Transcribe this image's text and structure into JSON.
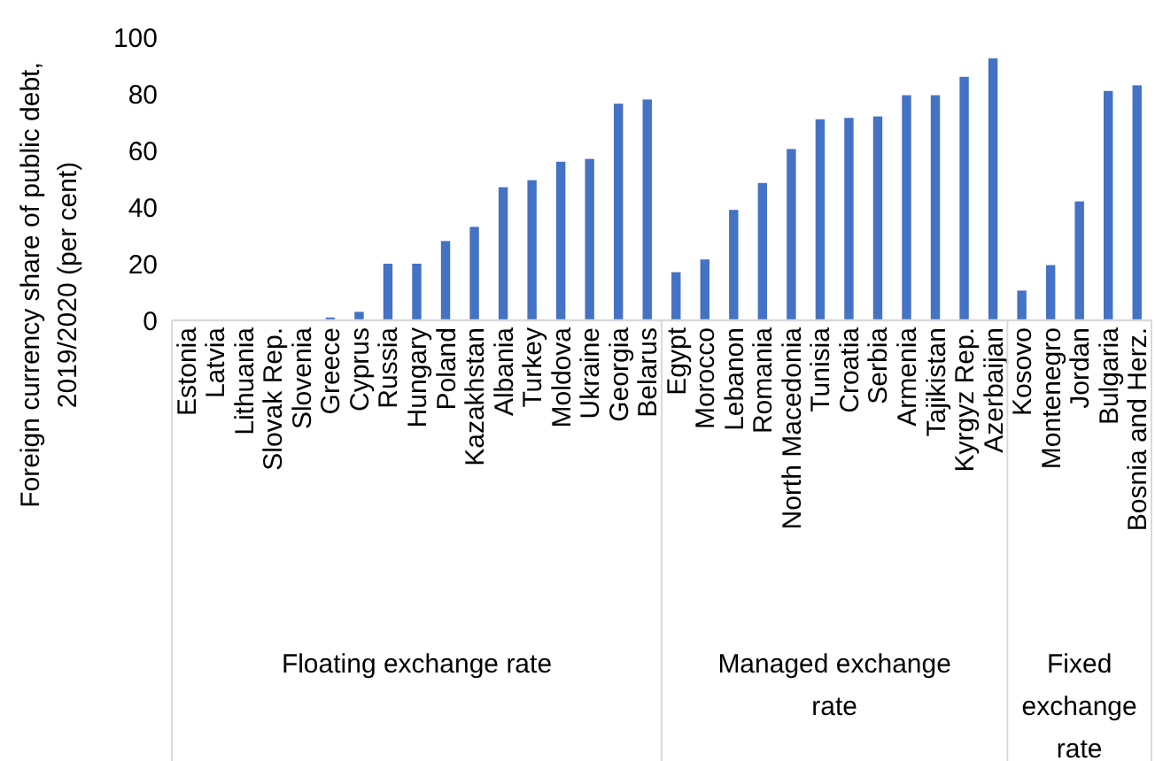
{
  "chart_data": {
    "type": "bar",
    "ylabel": "Foreign currency share of public debt, 2019/2020 (per cent)",
    "categories": [
      "Estonia",
      "Latvia",
      "Lithuania",
      "Slovak Rep.",
      "Slovenia",
      "Greece",
      "Cyprus",
      "Russia",
      "Hungary",
      "Poland",
      "Kazakhstan",
      "Albania",
      "Turkey",
      "Moldova",
      "Ukraine",
      "Georgia",
      "Belarus",
      "Egypt",
      "Morocco",
      "Lebanon",
      "Romania",
      "North Macedonia",
      "Tunisia",
      "Croatia",
      "Serbia",
      "Armenia",
      "Tajikistan",
      "Kyrgyz Rep.",
      "Azerbaijan",
      "Kosovo",
      "Montenegro",
      "Jordan",
      "Bulgaria",
      "Bosnia and Herz."
    ],
    "values": [
      0,
      0,
      0,
      0,
      0,
      1,
      3,
      20,
      20,
      28,
      33,
      47,
      49.5,
      56,
      57,
      76.5,
      78,
      17,
      21.5,
      39,
      48.5,
      60.5,
      71,
      71.5,
      72,
      79.5,
      79.5,
      86,
      92.5,
      10.5,
      19.5,
      42,
      81,
      83
    ],
    "color": "#4472c4",
    "ylim": [
      0,
      100
    ],
    "yticks": [
      0,
      20,
      40,
      60,
      80,
      100
    ],
    "grid": false,
    "annotations": [
      "Floating exchange rate",
      "Managed exchange rate",
      "Fixed exchange rate"
    ]
  }
}
